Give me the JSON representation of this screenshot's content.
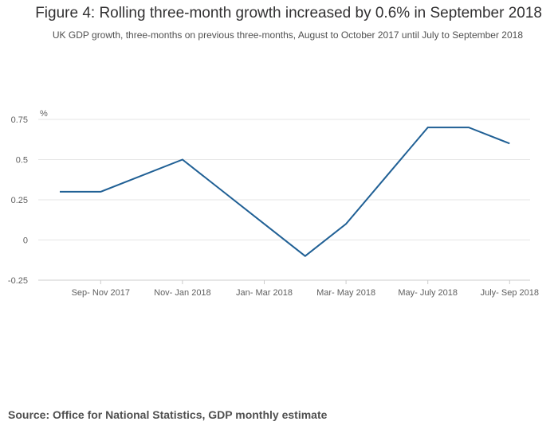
{
  "title": "Figure 4: Rolling three-month growth increased by 0.6% in September 2018",
  "subtitle": "UK GDP growth, three-months on previous three-months, August to October 2017 until July to September 2018",
  "source": "Source: Office for National Statistics, GDP monthly estimate",
  "colors": {
    "series": "#206095",
    "gridline": "#e6e6e6",
    "axis": "#cccccc"
  },
  "chart_data": {
    "type": "line",
    "title": "Figure 4: Rolling three-month growth increased by 0.6% in September 2018",
    "subtitle": "UK GDP growth, three-months on previous three-months, August to October 2017 until July to September 2018",
    "xlabel": "",
    "ylabel": "%",
    "ylim": [
      -0.25,
      0.75
    ],
    "yticks": [
      -0.25,
      0,
      0.25,
      0.5,
      0.75
    ],
    "ytick_labels": [
      "-0.25",
      "0",
      "0.25",
      "0.5",
      "0.75"
    ],
    "grid": true,
    "legend": "none",
    "points": 12,
    "x_tick_labels": [
      {
        "index": 1,
        "label": "Sep- Nov 2017"
      },
      {
        "index": 3,
        "label": "Nov- Jan 2018"
      },
      {
        "index": 5,
        "label": "Jan- Mar 2018"
      },
      {
        "index": 7,
        "label": "Mar- May 2018"
      },
      {
        "index": 9,
        "label": "May- July 2018"
      },
      {
        "index": 11,
        "label": "July- Sep 2018"
      }
    ],
    "series": [
      {
        "values": [
          0.3,
          0.3,
          0.4,
          0.5,
          0.3,
          0.1,
          -0.1,
          0.1,
          0.4,
          0.7,
          0.7,
          0.6
        ]
      }
    ]
  }
}
